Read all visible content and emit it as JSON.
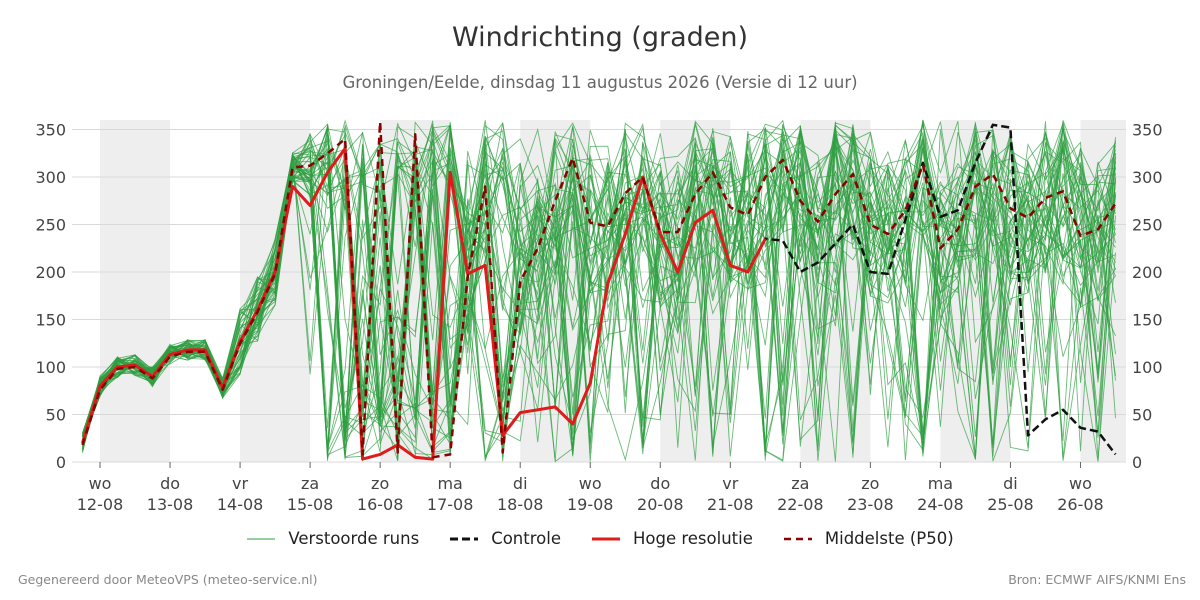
{
  "title": "Windrichting (graden)",
  "subtitle": "Groningen/Eelde, dinsdag 11 augustus 2026 (Versie di 12 uur)",
  "footer_left": "Gegenereerd door MeteoVPS (meteo-service.nl)",
  "footer_right": "Bron: ECMWF AIFS/KNMI Ens",
  "colors": {
    "ensemble": "#2e9e40",
    "control": "#111111",
    "hres": "#e01b1b",
    "median": "#8b0000",
    "night_shading": "#eeeeee",
    "grid": "#d9d9d9"
  },
  "chart_data": {
    "type": "line",
    "title": "Windrichting (graden)",
    "ylim": [
      0,
      360
    ],
    "yticks": [
      0,
      50,
      100,
      150,
      200,
      250,
      300,
      350
    ],
    "xlim": [
      -0.4,
      14.65
    ],
    "day_labels": [
      {
        "x": 0,
        "top": "wo",
        "bottom": "12-08"
      },
      {
        "x": 1,
        "top": "do",
        "bottom": "13-08"
      },
      {
        "x": 2,
        "top": "vr",
        "bottom": "14-08"
      },
      {
        "x": 3,
        "top": "za",
        "bottom": "15-08"
      },
      {
        "x": 4,
        "top": "zo",
        "bottom": "16-08"
      },
      {
        "x": 5,
        "top": "ma",
        "bottom": "17-08"
      },
      {
        "x": 6,
        "top": "di",
        "bottom": "18-08"
      },
      {
        "x": 7,
        "top": "wo",
        "bottom": "19-08"
      },
      {
        "x": 8,
        "top": "do",
        "bottom": "20-08"
      },
      {
        "x": 9,
        "top": "vr",
        "bottom": "21-08"
      },
      {
        "x": 10,
        "top": "za",
        "bottom": "22-08"
      },
      {
        "x": 11,
        "top": "zo",
        "bottom": "23-08"
      },
      {
        "x": 12,
        "top": "ma",
        "bottom": "24-08"
      },
      {
        "x": 13,
        "top": "di",
        "bottom": "25-08"
      },
      {
        "x": 14,
        "top": "wo",
        "bottom": "26-08"
      }
    ],
    "shaded_bands": [
      [
        0,
        1
      ],
      [
        2,
        3
      ],
      [
        4,
        5
      ],
      [
        6,
        7
      ],
      [
        8,
        9
      ],
      [
        10,
        11
      ],
      [
        12,
        13
      ],
      [
        14,
        14.65
      ]
    ],
    "ensemble_member_count": 50,
    "series": [
      {
        "name": "Hoge resolutie",
        "x": [
          -0.25,
          0,
          0.25,
          0.5,
          0.75,
          1,
          1.25,
          1.5,
          1.75,
          2,
          2.25,
          2.5,
          2.75,
          3,
          3.25,
          3.5,
          3.75,
          4,
          4.25,
          4.5,
          4.75,
          5,
          5.25,
          5.5,
          5.75,
          6,
          6.25,
          6.5,
          6.75,
          7,
          7.25,
          7.5,
          7.75,
          8,
          8.25,
          8.5,
          8.75,
          9,
          9.25,
          9.5
        ],
        "y": [
          20,
          80,
          100,
          102,
          90,
          113,
          118,
          118,
          78,
          127,
          160,
          200,
          290,
          270,
          305,
          330,
          3,
          8,
          18,
          5,
          3,
          305,
          198,
          207,
          28,
          52,
          55,
          58,
          40,
          83,
          188,
          240,
          300,
          240,
          200,
          252,
          265,
          207,
          200,
          235
        ]
      },
      {
        "name": "Controle",
        "x": [
          -0.25,
          0,
          0.25,
          0.5,
          0.75,
          1,
          1.25,
          1.5,
          1.75,
          2,
          2.25,
          2.5,
          2.75,
          3,
          3.25,
          3.5,
          3.75,
          4,
          4.25,
          4.5,
          4.75,
          5,
          5.25,
          5.5,
          5.75,
          6,
          6.25,
          6.5,
          6.75,
          7,
          7.25,
          7.5,
          7.75,
          8,
          8.25,
          8.5,
          8.75,
          9,
          9.25,
          9.5,
          9.75,
          10,
          10.25,
          10.5,
          10.75,
          11,
          11.25,
          11.5,
          11.75,
          12,
          12.25,
          12.5,
          12.75,
          13,
          13.25,
          13.5,
          13.75,
          14,
          14.25,
          14.5
        ],
        "y": [
          20,
          78,
          100,
          102,
          90,
          113,
          118,
          118,
          78,
          127,
          160,
          200,
          290,
          270,
          305,
          330,
          3,
          8,
          18,
          5,
          3,
          305,
          198,
          207,
          28,
          52,
          55,
          58,
          40,
          83,
          188,
          240,
          300,
          240,
          200,
          252,
          265,
          207,
          200,
          235,
          233,
          200,
          210,
          230,
          250,
          200,
          198,
          255,
          315,
          258,
          265,
          315,
          355,
          352,
          28,
          45,
          55,
          36,
          32,
          8
        ]
      },
      {
        "name": "Middelste (P50)",
        "x": [
          -0.25,
          0,
          0.25,
          0.5,
          0.75,
          1,
          1.25,
          1.5,
          1.75,
          2,
          2.25,
          2.5,
          2.75,
          3,
          3.25,
          3.5,
          3.75,
          4,
          4.25,
          4.5,
          4.75,
          5,
          5.25,
          5.5,
          5.75,
          6,
          6.25,
          6.5,
          6.75,
          7,
          7.25,
          7.5,
          7.75,
          8,
          8.25,
          8.5,
          8.75,
          9,
          9.25,
          9.5,
          9.75,
          10,
          10.25,
          10.5,
          10.75,
          11,
          11.25,
          11.5,
          11.75,
          12,
          12.25,
          12.5,
          12.75,
          13,
          13.25,
          13.5,
          13.75,
          14,
          14.25,
          14.5
        ],
        "y": [
          18,
          76,
          98,
          100,
          88,
          111,
          116,
          116,
          76,
          125,
          158,
          198,
          310,
          312,
          325,
          340,
          8,
          358,
          10,
          345,
          5,
          8,
          195,
          290,
          10,
          190,
          225,
          275,
          320,
          252,
          248,
          283,
          300,
          242,
          242,
          282,
          305,
          268,
          260,
          300,
          318,
          275,
          253,
          282,
          303,
          250,
          240,
          265,
          313,
          225,
          245,
          290,
          303,
          267,
          257,
          278,
          285,
          238,
          245,
          272
        ]
      }
    ]
  },
  "legend": {
    "ensemble": "Verstoorde runs",
    "control": "Controle",
    "hres": "Hoge resolutie",
    "median": "Middelste (P50)"
  }
}
